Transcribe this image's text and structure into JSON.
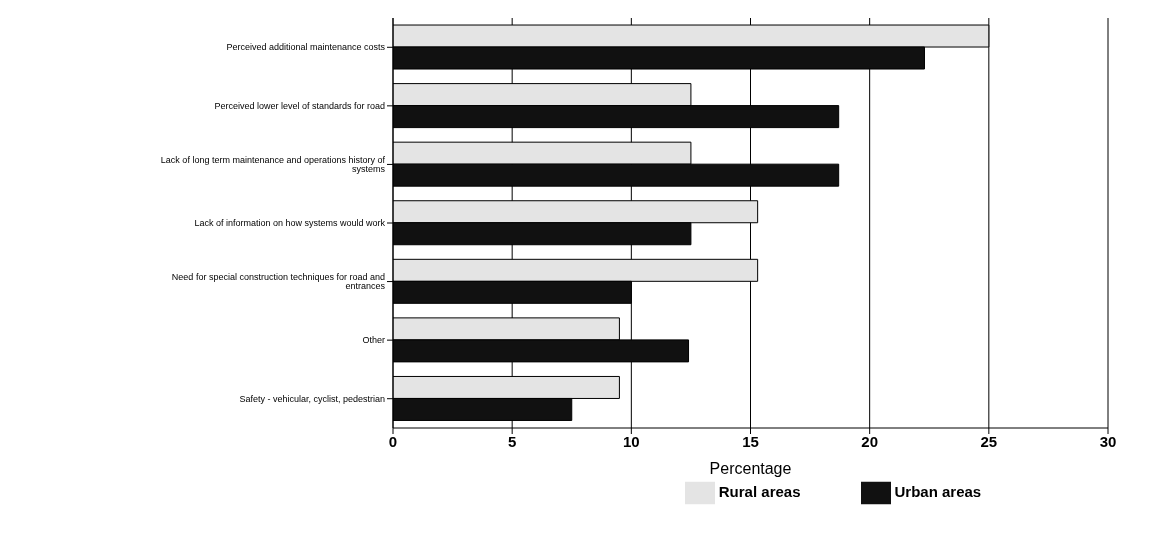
{
  "chart_data": {
    "type": "bar",
    "orientation": "horizontal",
    "xlabel": "Percentage",
    "categories": [
      "Perceived additional maintenance costs",
      "Perceived lower level of standards for road",
      "Lack of long term maintenance and operations history of systems",
      "Lack of information on how systems would work",
      "Need for special construction techniques for road and entrances",
      "Other",
      "Safety - vehicular, cyclist, pedestrian"
    ],
    "series": [
      {
        "name": "Rural areas",
        "color": "#e4e4e4",
        "values": [
          25,
          12.5,
          12.5,
          15.3,
          15.3,
          9.5,
          9.5
        ]
      },
      {
        "name": "Urban areas",
        "color": "#111111",
        "values": [
          22.3,
          18.7,
          18.7,
          12.5,
          10,
          12.4,
          7.5
        ]
      }
    ],
    "xlim": [
      0,
      30
    ],
    "xticks": [
      0,
      5,
      10,
      15,
      20,
      25,
      30
    ],
    "grid": "x",
    "legend": "bottom"
  }
}
